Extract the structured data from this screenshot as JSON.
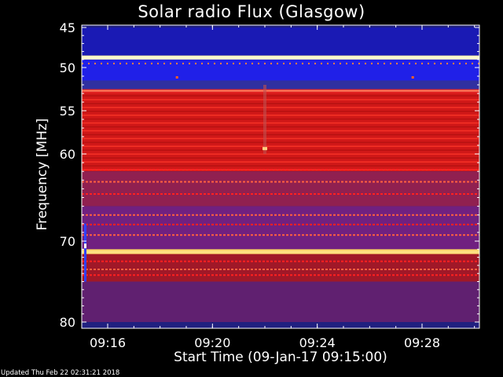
{
  "chart_data": {
    "type": "heatmap",
    "title": "Solar radio Flux (Glasgow)",
    "xlabel": "Start Time (09-Jan-17 09:15:00)",
    "ylabel": "Frequency [MHz]",
    "x_ticks": [
      "09:16",
      "09:20",
      "09:24",
      "09:28"
    ],
    "y_ticks": [
      "45",
      "50",
      "55",
      "60",
      "70",
      "80"
    ],
    "ylim": [
      45,
      80
    ],
    "xlim": [
      "09:15:00",
      "09:30:05"
    ],
    "colormap": [
      "#000000",
      "#0000ff",
      "#ff0000",
      "#ffffff"
    ],
    "bands": [
      {
        "from": 45.0,
        "to": 48.5,
        "color": "#1a1ab4"
      },
      {
        "from": 48.5,
        "to": 49.0,
        "color": "#fff0b0"
      },
      {
        "from": 49.0,
        "to": 51.5,
        "color": "#2020e8"
      },
      {
        "from": 51.5,
        "to": 52.5,
        "color": "#3030a0"
      },
      {
        "from": 52.5,
        "to": 53.0,
        "color": "#e02020"
      },
      {
        "from": 53.0,
        "to": 62.0,
        "color": "#d01818"
      },
      {
        "from": 62.0,
        "to": 66.0,
        "color": "#902050"
      },
      {
        "from": 66.0,
        "to": 71.0,
        "color": "#702080"
      },
      {
        "from": 71.0,
        "to": 71.6,
        "color": "#ffd060"
      },
      {
        "from": 71.6,
        "to": 75.0,
        "color": "#a01828"
      },
      {
        "from": 75.0,
        "to": 80.0,
        "color": "#602070"
      }
    ]
  },
  "footer": "Updated Thu Feb 22 02:31:21 2018"
}
